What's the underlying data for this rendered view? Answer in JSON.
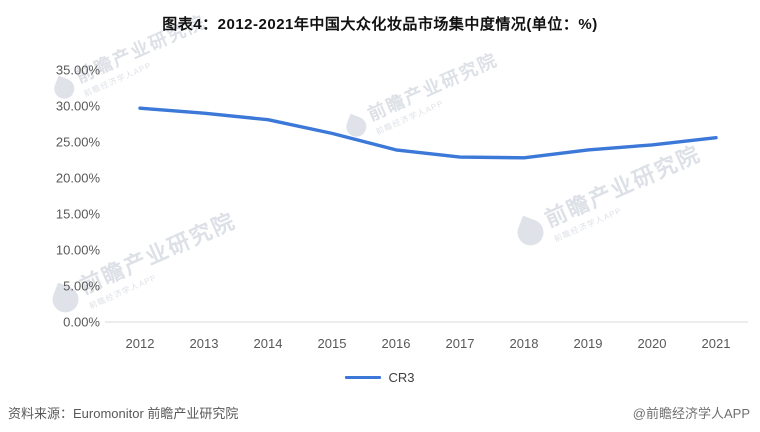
{
  "title": "图表4：2012-2021年中国大众化妆品市场集中度情况(单位：%)",
  "legend": {
    "label": "CR3"
  },
  "footer": {
    "source": "资料来源：Euromonitor 前瞻产业研究院",
    "credit": "@前瞻经济学人APP"
  },
  "watermark": {
    "text": "前瞻产业研究院",
    "sub": "前瞻经济学人APP"
  },
  "colors": {
    "line": "#3b78d8",
    "axis_text": "#595959",
    "baseline": "#d9d9d9",
    "title_text": "#111111",
    "watermark": "#aab4c4"
  },
  "chart_data": {
    "type": "line",
    "x": [
      "2012",
      "2013",
      "2014",
      "2015",
      "2016",
      "2017",
      "2018",
      "2019",
      "2020",
      "2021"
    ],
    "series": [
      {
        "name": "CR3",
        "values": [
          29.7,
          29.0,
          28.1,
          26.2,
          23.9,
          22.9,
          22.8,
          23.9,
          24.6,
          25.6
        ]
      }
    ],
    "unit": "%",
    "title": "图表4：2012-2021年中国大众化妆品市场集中度情况(单位：%)",
    "xlabel": "",
    "ylabel": "",
    "ylim": [
      0,
      35
    ],
    "yticks": [
      "35.00%",
      "30.00%",
      "25.00%",
      "20.00%",
      "15.00%",
      "10.00%",
      "5.00%",
      "0.00%"
    ],
    "grid": false,
    "legend_position": "bottom"
  }
}
